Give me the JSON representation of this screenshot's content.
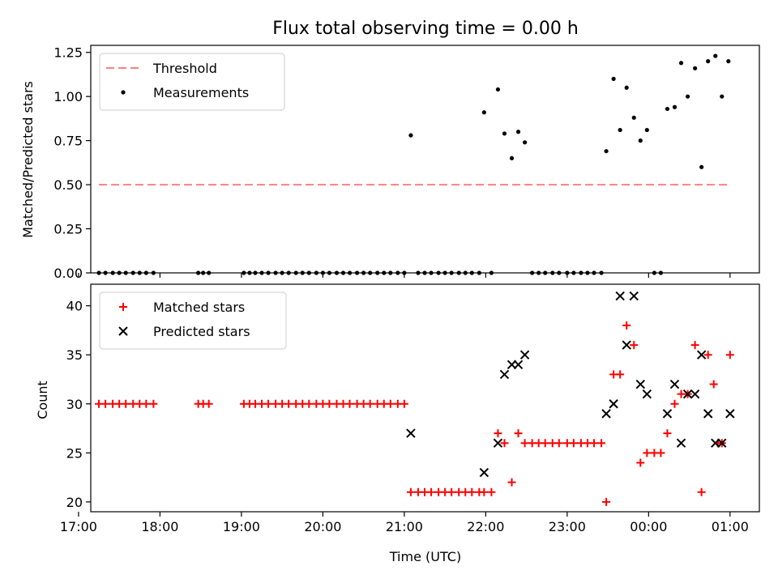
{
  "title": "Flux total observing time = 0.00 h",
  "chart_data": [
    {
      "type": "scatter",
      "ylabel": "Matched/Predicted stars",
      "ylim": [
        0,
        1.29
      ],
      "yticks": [
        0,
        0.25,
        0.5,
        0.75,
        1.0,
        1.25
      ],
      "ytick_labels": [
        "0.00",
        "0.25",
        "0.50",
        "0.75",
        "1.00",
        "1.25"
      ],
      "xlim": [
        17.15,
        25.36
      ],
      "legend_position": "top-left",
      "threshold": {
        "name": "Threshold",
        "color": "#ff7f7f",
        "y": 0.5,
        "x": [
          17.25,
          25.0
        ]
      },
      "series": [
        {
          "name": "Measurements",
          "color": "#000000",
          "points": [
            [
              17.25,
              0
            ],
            [
              17.33,
              0
            ],
            [
              17.42,
              0
            ],
            [
              17.5,
              0
            ],
            [
              17.58,
              0
            ],
            [
              17.67,
              0
            ],
            [
              17.75,
              0
            ],
            [
              17.83,
              0
            ],
            [
              17.92,
              0
            ],
            [
              18.47,
              0
            ],
            [
              18.53,
              0
            ],
            [
              18.6,
              0
            ],
            [
              19.03,
              0
            ],
            [
              19.1,
              0
            ],
            [
              19.17,
              0
            ],
            [
              19.25,
              0
            ],
            [
              19.33,
              0
            ],
            [
              19.42,
              0
            ],
            [
              19.5,
              0
            ],
            [
              19.58,
              0
            ],
            [
              19.67,
              0
            ],
            [
              19.75,
              0
            ],
            [
              19.83,
              0
            ],
            [
              19.92,
              0
            ],
            [
              20.0,
              0
            ],
            [
              20.08,
              0
            ],
            [
              20.17,
              0
            ],
            [
              20.25,
              0
            ],
            [
              20.33,
              0
            ],
            [
              20.42,
              0
            ],
            [
              20.5,
              0
            ],
            [
              20.58,
              0
            ],
            [
              20.67,
              0
            ],
            [
              20.75,
              0
            ],
            [
              20.83,
              0
            ],
            [
              20.92,
              0
            ],
            [
              21.0,
              0
            ],
            [
              21.08,
              0.78
            ],
            [
              21.17,
              0
            ],
            [
              21.25,
              0
            ],
            [
              21.33,
              0
            ],
            [
              21.42,
              0
            ],
            [
              21.5,
              0
            ],
            [
              21.58,
              0
            ],
            [
              21.67,
              0
            ],
            [
              21.75,
              0
            ],
            [
              21.83,
              0
            ],
            [
              21.92,
              0
            ],
            [
              21.98,
              0.91
            ],
            [
              22.07,
              0
            ],
            [
              22.15,
              1.04
            ],
            [
              22.23,
              0.79
            ],
            [
              22.32,
              0.65
            ],
            [
              22.4,
              0.8
            ],
            [
              22.48,
              0.74
            ],
            [
              22.57,
              0
            ],
            [
              22.65,
              0
            ],
            [
              22.73,
              0
            ],
            [
              22.82,
              0
            ],
            [
              22.9,
              0
            ],
            [
              23.0,
              0
            ],
            [
              23.08,
              0
            ],
            [
              23.17,
              0
            ],
            [
              23.25,
              0
            ],
            [
              23.33,
              0
            ],
            [
              23.42,
              0
            ],
            [
              23.48,
              0.69
            ],
            [
              23.57,
              1.1
            ],
            [
              23.65,
              0.81
            ],
            [
              23.73,
              1.05
            ],
            [
              23.82,
              0.88
            ],
            [
              23.9,
              0.75
            ],
            [
              23.98,
              0.81
            ],
            [
              24.07,
              0
            ],
            [
              24.15,
              0
            ],
            [
              24.23,
              0.93
            ],
            [
              24.32,
              0.94
            ],
            [
              24.4,
              1.19
            ],
            [
              24.48,
              1.0
            ],
            [
              24.57,
              1.16
            ],
            [
              24.65,
              0.6
            ],
            [
              24.73,
              1.2
            ],
            [
              24.82,
              1.23
            ],
            [
              24.9,
              1.0
            ],
            [
              24.98,
              1.2
            ]
          ]
        }
      ]
    },
    {
      "type": "scatter",
      "xlabel": "Time (UTC)",
      "ylabel": "Count",
      "ylim": [
        19.0,
        42.2
      ],
      "yticks": [
        20,
        25,
        30,
        35,
        40
      ],
      "ytick_labels": [
        "20",
        "25",
        "30",
        "35",
        "40"
      ],
      "xlim": [
        17.15,
        25.36
      ],
      "xticks": [
        17,
        18,
        19,
        20,
        21,
        22,
        23,
        24,
        25
      ],
      "xtick_labels": [
        "17:00",
        "18:00",
        "19:00",
        "20:00",
        "21:00",
        "22:00",
        "23:00",
        "00:00",
        "01:00"
      ],
      "legend_position": "top-left",
      "series": [
        {
          "name": "Matched stars",
          "marker": "plus",
          "color": "#ff0000",
          "points": [
            [
              17.25,
              30
            ],
            [
              17.33,
              30
            ],
            [
              17.42,
              30
            ],
            [
              17.5,
              30
            ],
            [
              17.58,
              30
            ],
            [
              17.67,
              30
            ],
            [
              17.75,
              30
            ],
            [
              17.83,
              30
            ],
            [
              17.92,
              30
            ],
            [
              18.47,
              30
            ],
            [
              18.53,
              30
            ],
            [
              18.6,
              30
            ],
            [
              19.03,
              30
            ],
            [
              19.1,
              30
            ],
            [
              19.17,
              30
            ],
            [
              19.25,
              30
            ],
            [
              19.33,
              30
            ],
            [
              19.42,
              30
            ],
            [
              19.5,
              30
            ],
            [
              19.58,
              30
            ],
            [
              19.67,
              30
            ],
            [
              19.75,
              30
            ],
            [
              19.83,
              30
            ],
            [
              19.92,
              30
            ],
            [
              20.0,
              30
            ],
            [
              20.08,
              30
            ],
            [
              20.17,
              30
            ],
            [
              20.25,
              30
            ],
            [
              20.33,
              30
            ],
            [
              20.42,
              30
            ],
            [
              20.5,
              30
            ],
            [
              20.58,
              30
            ],
            [
              20.67,
              30
            ],
            [
              20.75,
              30
            ],
            [
              20.83,
              30
            ],
            [
              20.92,
              30
            ],
            [
              21.0,
              30
            ],
            [
              21.08,
              21
            ],
            [
              21.17,
              21
            ],
            [
              21.25,
              21
            ],
            [
              21.33,
              21
            ],
            [
              21.42,
              21
            ],
            [
              21.5,
              21
            ],
            [
              21.58,
              21
            ],
            [
              21.67,
              21
            ],
            [
              21.75,
              21
            ],
            [
              21.83,
              21
            ],
            [
              21.92,
              21
            ],
            [
              21.98,
              21
            ],
            [
              22.07,
              21
            ],
            [
              22.15,
              27
            ],
            [
              22.23,
              26
            ],
            [
              22.32,
              22
            ],
            [
              22.4,
              27
            ],
            [
              22.48,
              26
            ],
            [
              22.57,
              26
            ],
            [
              22.65,
              26
            ],
            [
              22.73,
              26
            ],
            [
              22.82,
              26
            ],
            [
              22.9,
              26
            ],
            [
              23.0,
              26
            ],
            [
              23.08,
              26
            ],
            [
              23.17,
              26
            ],
            [
              23.25,
              26
            ],
            [
              23.33,
              26
            ],
            [
              23.42,
              26
            ],
            [
              23.48,
              20
            ],
            [
              23.57,
              33
            ],
            [
              23.65,
              33
            ],
            [
              23.73,
              38
            ],
            [
              23.82,
              36
            ],
            [
              23.9,
              24
            ],
            [
              23.98,
              25
            ],
            [
              24.07,
              25
            ],
            [
              24.15,
              25
            ],
            [
              24.23,
              27
            ],
            [
              24.32,
              30
            ],
            [
              24.4,
              31
            ],
            [
              24.48,
              31
            ],
            [
              24.57,
              36
            ],
            [
              24.65,
              21
            ],
            [
              24.73,
              35
            ],
            [
              24.8,
              32
            ],
            [
              24.85,
              26
            ],
            [
              24.9,
              26
            ],
            [
              25.0,
              35
            ]
          ]
        },
        {
          "name": "Predicted stars",
          "marker": "x",
          "color": "#000000",
          "points": [
            [
              21.08,
              27
            ],
            [
              21.98,
              23
            ],
            [
              22.15,
              26
            ],
            [
              22.23,
              33
            ],
            [
              22.32,
              34
            ],
            [
              22.4,
              34
            ],
            [
              22.48,
              35
            ],
            [
              23.48,
              29
            ],
            [
              23.57,
              30
            ],
            [
              23.65,
              41
            ],
            [
              23.73,
              36
            ],
            [
              23.82,
              41
            ],
            [
              23.9,
              32
            ],
            [
              23.98,
              31
            ],
            [
              24.23,
              29
            ],
            [
              24.32,
              32
            ],
            [
              24.4,
              26
            ],
            [
              24.48,
              31
            ],
            [
              24.57,
              31
            ],
            [
              24.65,
              35
            ],
            [
              24.73,
              29
            ],
            [
              24.82,
              26
            ],
            [
              24.9,
              26
            ],
            [
              25.0,
              29
            ]
          ]
        }
      ]
    }
  ]
}
